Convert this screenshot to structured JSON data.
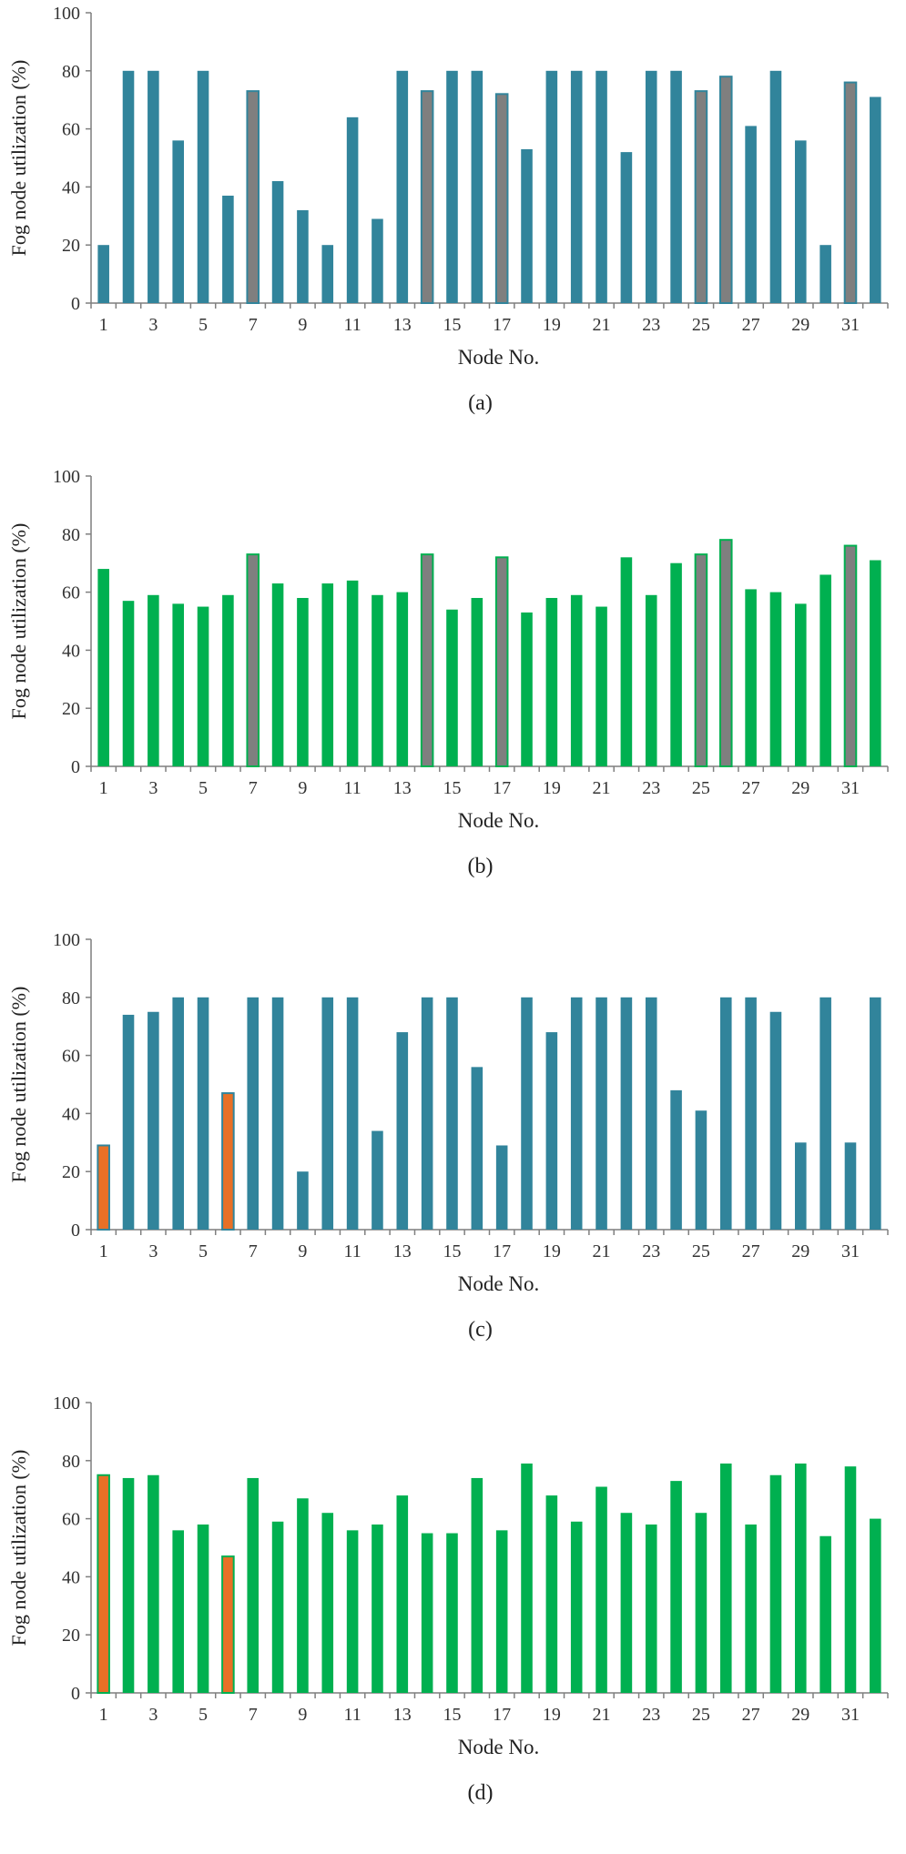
{
  "colors": {
    "blue": "#31849b",
    "green": "#00b050",
    "orange": "#e87026",
    "grey_highlight": "#7f7f7f",
    "axis": "#7f7f7f"
  },
  "chart_data": [
    {
      "type": "bar",
      "caption": "(a)",
      "title": "",
      "xlabel": "Node No.",
      "ylabel": "Fog node utilization (%)",
      "ylim": [
        0,
        100
      ],
      "yticks": [
        0,
        20,
        40,
        60,
        80,
        100
      ],
      "xticks": [
        "1",
        "3",
        "5",
        "7",
        "9",
        "11",
        "13",
        "15",
        "17",
        "19",
        "21",
        "23",
        "25",
        "27",
        "29",
        "31"
      ],
      "categories": [
        1,
        2,
        3,
        4,
        5,
        6,
        7,
        8,
        9,
        10,
        11,
        12,
        13,
        14,
        15,
        16,
        17,
        18,
        19,
        20,
        21,
        22,
        23,
        24,
        25,
        26,
        27,
        28,
        29,
        30,
        31,
        32
      ],
      "values": [
        20,
        80,
        80,
        56,
        80,
        37,
        73,
        42,
        32,
        20,
        64,
        29,
        80,
        73,
        80,
        80,
        72,
        53,
        80,
        80,
        80,
        52,
        80,
        80,
        73,
        78,
        61,
        80,
        56,
        20,
        76,
        71
      ],
      "bar_color": "#31849b",
      "highlight_color": "#7f7f7f",
      "highlighted_nodes": [
        7,
        14,
        17,
        25,
        26,
        31
      ]
    },
    {
      "type": "bar",
      "caption": "(b)",
      "title": "",
      "xlabel": "Node No.",
      "ylabel": "Fog node utilization (%)",
      "ylim": [
        0,
        100
      ],
      "yticks": [
        0,
        20,
        40,
        60,
        80,
        100
      ],
      "xticks": [
        "1",
        "3",
        "5",
        "7",
        "9",
        "11",
        "13",
        "15",
        "17",
        "19",
        "21",
        "23",
        "25",
        "27",
        "29",
        "31"
      ],
      "categories": [
        1,
        2,
        3,
        4,
        5,
        6,
        7,
        8,
        9,
        10,
        11,
        12,
        13,
        14,
        15,
        16,
        17,
        18,
        19,
        20,
        21,
        22,
        23,
        24,
        25,
        26,
        27,
        28,
        29,
        30,
        31,
        32
      ],
      "values": [
        68,
        57,
        59,
        56,
        55,
        59,
        73,
        63,
        58,
        63,
        64,
        59,
        60,
        73,
        54,
        58,
        72,
        53,
        58,
        59,
        55,
        72,
        59,
        70,
        73,
        78,
        61,
        60,
        56,
        66,
        76,
        71
      ],
      "bar_color": "#00b050",
      "highlight_color": "#7f7f7f",
      "highlighted_nodes": [
        7,
        14,
        17,
        25,
        26,
        31
      ]
    },
    {
      "type": "bar",
      "caption": "(c)",
      "title": "",
      "xlabel": "Node No.",
      "ylabel": "Fog node utilization (%)",
      "ylim": [
        0,
        100
      ],
      "yticks": [
        0,
        20,
        40,
        60,
        80,
        100
      ],
      "xticks": [
        "1",
        "3",
        "5",
        "7",
        "9",
        "11",
        "13",
        "15",
        "17",
        "19",
        "21",
        "23",
        "25",
        "27",
        "29",
        "31"
      ],
      "categories": [
        1,
        2,
        3,
        4,
        5,
        6,
        7,
        8,
        9,
        10,
        11,
        12,
        13,
        14,
        15,
        16,
        17,
        18,
        19,
        20,
        21,
        22,
        23,
        24,
        25,
        26,
        27,
        28,
        29,
        30,
        31,
        32
      ],
      "values": [
        29,
        74,
        75,
        80,
        80,
        47,
        80,
        80,
        20,
        80,
        80,
        34,
        68,
        80,
        80,
        56,
        29,
        80,
        68,
        80,
        80,
        80,
        80,
        48,
        41,
        80,
        80,
        75,
        30,
        80,
        30,
        80
      ],
      "bar_color": "#31849b",
      "highlight_color": "#e87026",
      "highlighted_nodes": [
        1,
        6
      ]
    },
    {
      "type": "bar",
      "caption": "(d)",
      "title": "",
      "xlabel": "Node No.",
      "ylabel": "Fog node utilization (%)",
      "ylim": [
        0,
        100
      ],
      "yticks": [
        0,
        20,
        40,
        60,
        80,
        100
      ],
      "xticks": [
        "1",
        "3",
        "5",
        "7",
        "9",
        "11",
        "13",
        "15",
        "17",
        "19",
        "21",
        "23",
        "25",
        "27",
        "29",
        "31"
      ],
      "categories": [
        1,
        2,
        3,
        4,
        5,
        6,
        7,
        8,
        9,
        10,
        11,
        12,
        13,
        14,
        15,
        16,
        17,
        18,
        19,
        20,
        21,
        22,
        23,
        24,
        25,
        26,
        27,
        28,
        29,
        30,
        31,
        32
      ],
      "values": [
        75,
        74,
        75,
        56,
        58,
        47,
        74,
        59,
        67,
        62,
        56,
        58,
        68,
        55,
        55,
        74,
        56,
        79,
        68,
        59,
        71,
        62,
        58,
        73,
        62,
        79,
        58,
        75,
        79,
        54,
        78,
        60
      ],
      "bar_color": "#00b050",
      "highlight_color": "#e87026",
      "highlighted_nodes": [
        1,
        6
      ]
    }
  ]
}
